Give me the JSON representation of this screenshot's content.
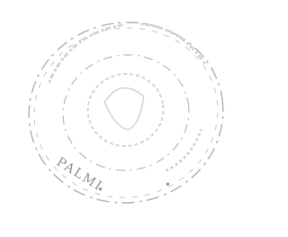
{
  "stamp": {
    "bottom_text": "PALMI"
  }
}
